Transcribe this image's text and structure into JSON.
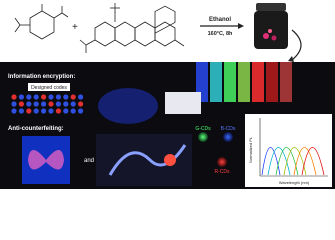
{
  "reaction": {
    "solvent": "Ethanol",
    "conditions": "160°C, 8h"
  },
  "encryption": {
    "title": "Information encryption:",
    "codes_label": "Designed codes"
  },
  "anticounterfeiting": {
    "title": "Anti-counterfeiting:",
    "joiner": "and"
  },
  "dots": {
    "green": "G-CDs",
    "blue": "B-CDs",
    "red": "R-CDs"
  },
  "spectrum": {
    "y_label": "Normalized PL",
    "x_label": "Wavelength (nm)"
  }
}
